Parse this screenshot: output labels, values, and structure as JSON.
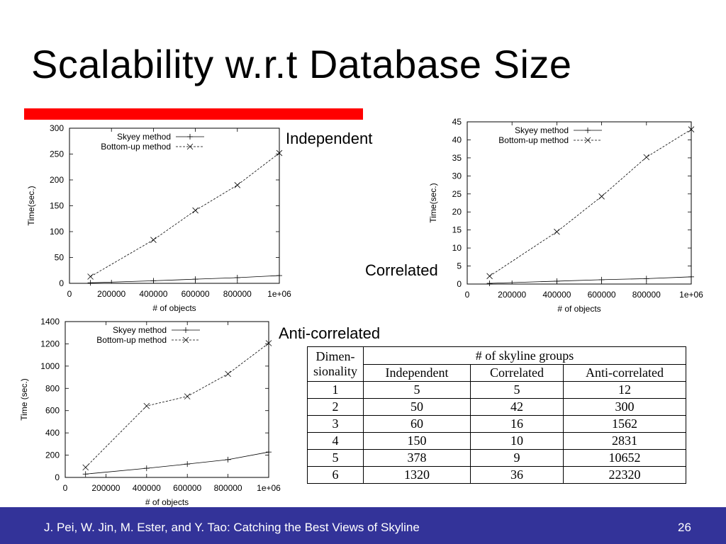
{
  "slide": {
    "title": "Scalability w.r.t Database Size",
    "accent_color": "#ff0000",
    "footer_color": "#333399",
    "footer_text": "J. Pei, W. Jin, M. Ester, and Y. Tao: Catching the Best Views of Skyline",
    "page_number": "26"
  },
  "chart_data": [
    {
      "label": "Independent",
      "type": "line",
      "xlabel": "# of objects",
      "ylabel": "Time(sec.)",
      "xlim": [
        0,
        1000000
      ],
      "ylim": [
        0,
        300
      ],
      "xticks": [
        0,
        200000,
        400000,
        600000,
        800000,
        1000000
      ],
      "xtick_labels": [
        "0",
        "200000",
        "400000",
        "600000",
        "800000",
        "1e+06"
      ],
      "yticks": [
        0,
        50,
        100,
        150,
        200,
        250,
        300
      ],
      "legend_position": "top-left",
      "series": [
        {
          "name": "Skyey method",
          "marker": "plus",
          "dash": "solid",
          "x": [
            100000,
            400000,
            600000,
            800000,
            1000000
          ],
          "y": [
            1,
            5,
            8,
            11,
            15
          ]
        },
        {
          "name": "Bottom-up method",
          "marker": "cross",
          "dash": "dashed",
          "x": [
            100000,
            400000,
            600000,
            800000,
            1000000
          ],
          "y": [
            13,
            84,
            141,
            190,
            252
          ]
        }
      ]
    },
    {
      "label": "Correlated",
      "type": "line",
      "xlabel": "# of objects",
      "ylabel": "Time(sec.)",
      "xlim": [
        0,
        1000000
      ],
      "ylim": [
        0,
        45
      ],
      "xticks": [
        0,
        200000,
        400000,
        600000,
        800000,
        1000000
      ],
      "xtick_labels": [
        "0",
        "200000",
        "400000",
        "600000",
        "800000",
        "1e+06"
      ],
      "yticks": [
        0,
        5,
        10,
        15,
        20,
        25,
        30,
        35,
        40,
        45
      ],
      "legend_position": "top-left",
      "series": [
        {
          "name": "Skyey method",
          "marker": "plus",
          "dash": "solid",
          "x": [
            100000,
            400000,
            600000,
            800000,
            1000000
          ],
          "y": [
            0.2,
            0.8,
            1.2,
            1.5,
            2
          ]
        },
        {
          "name": "Bottom-up method",
          "marker": "cross",
          "dash": "dashed",
          "x": [
            100000,
            400000,
            600000,
            800000,
            1000000
          ],
          "y": [
            2.2,
            14.5,
            24.3,
            35.2,
            42.9
          ]
        }
      ]
    },
    {
      "label": "Anti-correlated",
      "type": "line",
      "xlabel": "# of objects",
      "ylabel": "Time (sec.)",
      "xlim": [
        0,
        1000000
      ],
      "ylim": [
        0,
        1400
      ],
      "xticks": [
        0,
        200000,
        400000,
        600000,
        800000,
        1000000
      ],
      "xtick_labels": [
        "0",
        "200000",
        "400000",
        "600000",
        "800000",
        "1e+06"
      ],
      "yticks": [
        0,
        200,
        400,
        600,
        800,
        1000,
        1200,
        1400
      ],
      "legend_position": "top-left",
      "series": [
        {
          "name": "Skyey method",
          "marker": "plus",
          "dash": "solid",
          "x": [
            100000,
            400000,
            600000,
            800000,
            1000000
          ],
          "y": [
            30,
            82,
            120,
            160,
            228
          ]
        },
        {
          "name": "Bottom-up method",
          "marker": "cross",
          "dash": "dashed",
          "x": [
            100000,
            400000,
            600000,
            800000,
            1000000
          ],
          "y": [
            90,
            642,
            728,
            930,
            1206
          ]
        }
      ]
    },
    {
      "type": "table",
      "header_dim": [
        "Dimen-",
        "sionality"
      ],
      "header_group": "# of skyline groups",
      "columns": [
        "Independent",
        "Correlated",
        "Anti-correlated"
      ],
      "rows": [
        [
          "1",
          "5",
          "5",
          "12"
        ],
        [
          "2",
          "50",
          "42",
          "300"
        ],
        [
          "3",
          "60",
          "16",
          "1562"
        ],
        [
          "4",
          "150",
          "10",
          "2831"
        ],
        [
          "5",
          "378",
          "9",
          "10652"
        ],
        [
          "6",
          "1320",
          "36",
          "22320"
        ]
      ]
    }
  ]
}
